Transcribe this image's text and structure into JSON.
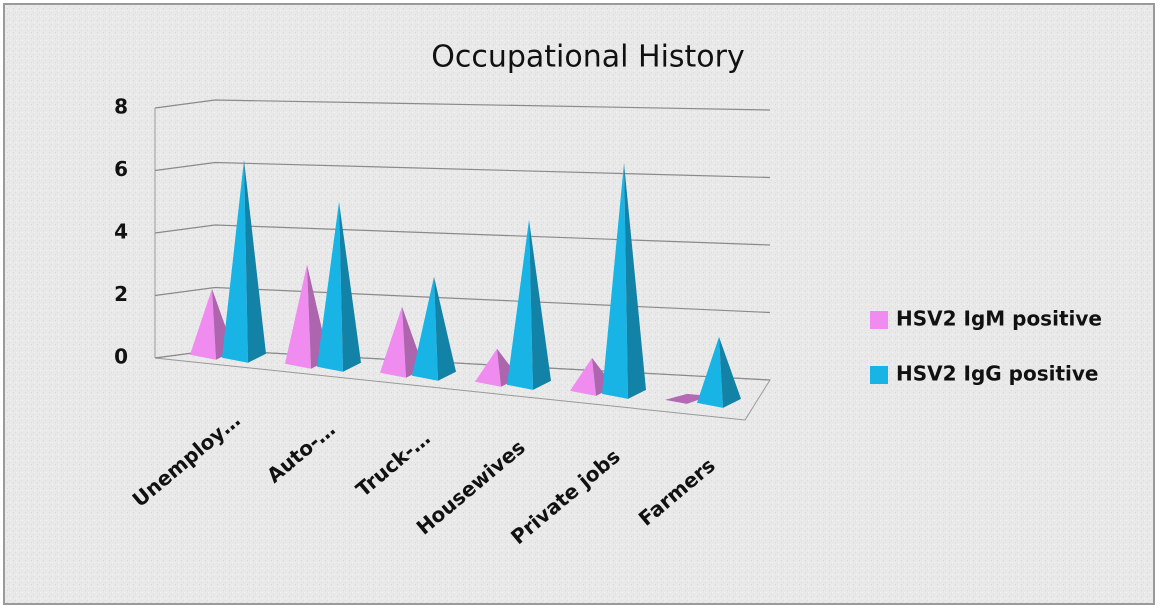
{
  "chart_data": {
    "type": "bar3d-pyramid",
    "title": "Occupational History",
    "categories": [
      "Unemploy…",
      "Auto-…",
      "Truck-…",
      "Housewives",
      "Private jobs",
      "Farmers"
    ],
    "series": [
      {
        "name": "HSV2 IgM positive",
        "color": "#f08cf0",
        "values": [
          2,
          3,
          2,
          1,
          1,
          0
        ]
      },
      {
        "name": "HSV2 IgG positive",
        "color": "#19b4e6",
        "values": [
          6,
          5,
          3,
          5,
          7,
          2
        ]
      }
    ],
    "ylim": [
      0,
      8
    ],
    "yticks": [
      0,
      2,
      4,
      6,
      8
    ],
    "grid": true,
    "legend": "right"
  }
}
